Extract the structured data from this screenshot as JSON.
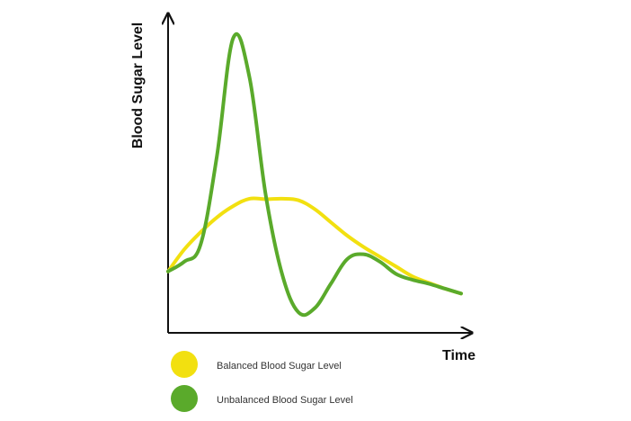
{
  "chart_data": {
    "type": "line",
    "title": "",
    "xlabel": "Time",
    "ylabel": "Blood Sugar Level",
    "x": [
      0,
      1,
      2,
      3,
      4,
      5,
      6,
      7,
      8,
      9,
      10,
      11,
      12,
      13,
      14,
      15,
      16,
      17,
      18
    ],
    "series": [
      {
        "name": "Balanced Blood Sugar Level",
        "color": "#f2e010",
        "values": [
          12.5,
          17,
          20.5,
          23.5,
          25.8,
          27.3,
          27.2,
          27.3,
          27,
          25.2,
          22.5,
          19.8,
          17.5,
          15.5,
          13.5,
          11.5,
          10.2,
          9,
          8
        ]
      },
      {
        "name": "Unbalanced Blood Sugar Level",
        "color": "#5aaa2b",
        "values": [
          12.5,
          14.5,
          18,
          36,
          60,
          52,
          28,
          12,
          4.2,
          5,
          10,
          15,
          16,
          14.5,
          12,
          10.8,
          10,
          9,
          8
        ]
      }
    ],
    "ylim": [
      0,
      65
    ],
    "xlim": [
      0,
      18
    ],
    "grid": false,
    "legend": "bottom-left"
  }
}
